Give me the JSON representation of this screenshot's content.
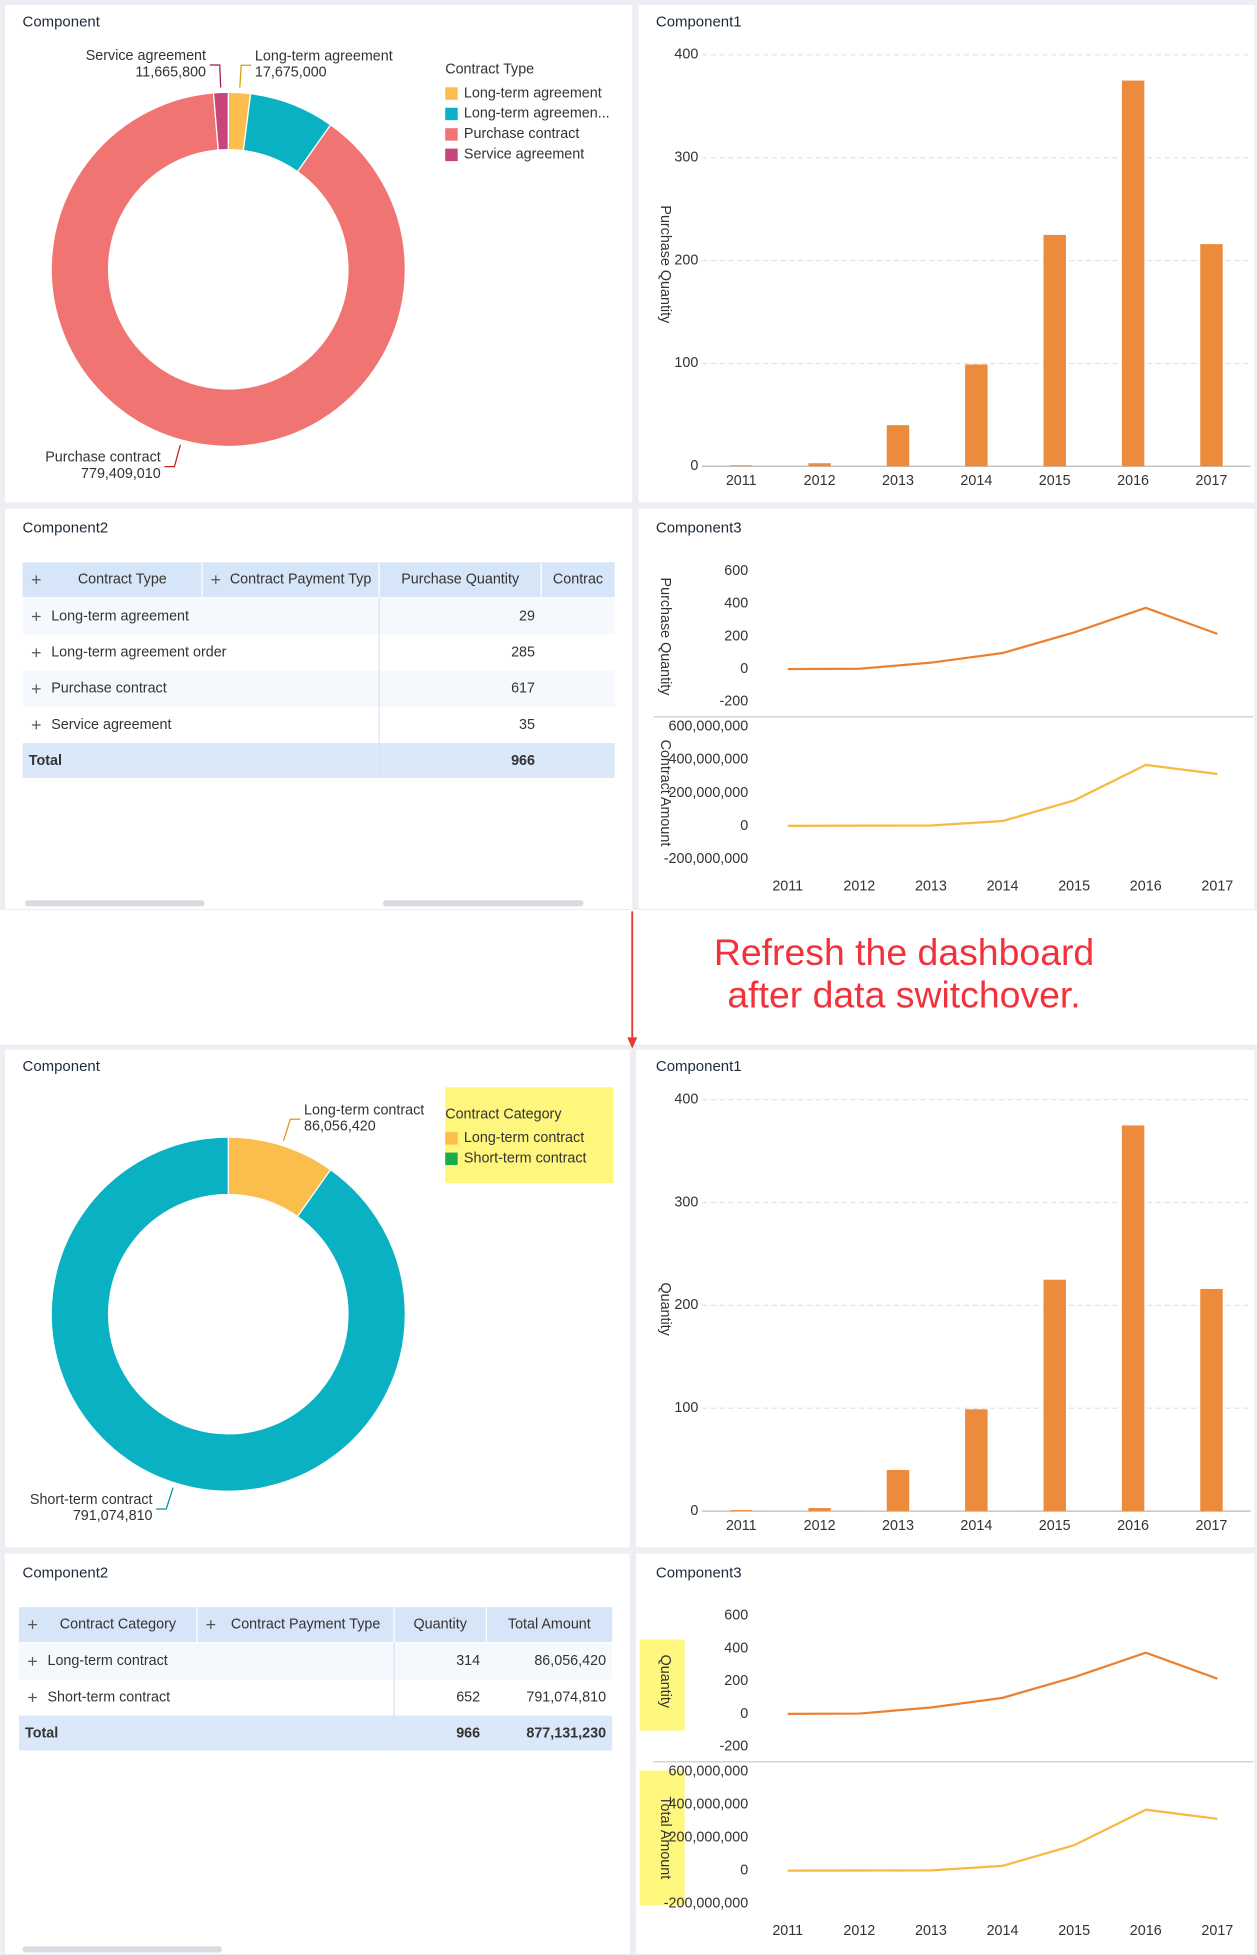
{
  "annotation": [
    "Refresh the dashboard",
    "after data switchover."
  ],
  "dashboards": [
    {
      "donut": {
        "title": "Component",
        "type": "donut",
        "legend_title": "Contract Type",
        "categories": [
          "Long-term agreement",
          "Long-term agreemen...",
          "Purchase contract",
          "Service agreement"
        ],
        "values": [
          17675000,
          68381420,
          779409010,
          11665800
        ],
        "value_labels": [
          "17,675,000",
          null,
          "779,409,010",
          "11,665,800"
        ],
        "colors": [
          "#fbbd4b",
          "#0ab1c3",
          "#f07471",
          "#c8457c"
        ],
        "legend_colors": [
          "#fbbd4b",
          "#0ab1c3",
          "#f07471",
          "#c8457c"
        ],
        "label_colors": [
          "#d99a0c",
          null,
          "#c8201f",
          "#a8124f"
        ]
      },
      "bar": {
        "title": "Component1",
        "type": "bar",
        "y_label": "Purchase Quantity",
        "categories": [
          "2011",
          "2012",
          "2013",
          "2014",
          "2015",
          "2016",
          "2017"
        ],
        "values": [
          1,
          3,
          40,
          99,
          225,
          375,
          216
        ],
        "color": "#ec8b3b",
        "ylim": [
          0,
          400
        ],
        "yticks": [
          0,
          100,
          200,
          300,
          400
        ],
        "grid": true
      },
      "table": {
        "title": "Component2",
        "columns": [
          "Contract Type",
          "Contract Payment Typ",
          "Purchase Quantity",
          "Contrac"
        ],
        "rows": [
          [
            "Long-term agreement",
            null,
            "29",
            null
          ],
          [
            "Long-term agreement order",
            null,
            "285",
            null
          ],
          [
            "Purchase contract",
            null,
            "617",
            null
          ],
          [
            "Service agreement",
            null,
            "35",
            null
          ]
        ],
        "total": [
          "Total",
          null,
          "966",
          null
        ]
      },
      "line": {
        "title": "Component3",
        "type": "line",
        "categories": [
          "2011",
          "2012",
          "2013",
          "2014",
          "2015",
          "2016",
          "2017"
        ],
        "series": [
          {
            "name": "Purchase Quantity",
            "color": "#ec8031",
            "values": [
              1,
              3,
              40,
              99,
              225,
              375,
              216
            ],
            "ylim": [
              -200,
              600
            ],
            "yticks": [
              -200,
              0,
              200,
              400,
              600
            ]
          },
          {
            "name": "Contract Amount",
            "color": "#f9b842",
            "values": [
              1000000,
              2000000,
              3000000,
              30000000,
              155000000,
              370000000,
              315000000
            ],
            "ylim": [
              -200000000,
              600000000
            ],
            "yticks": [
              {
                "value": -200000000,
                "label": "-200,000,000"
              },
              0,
              {
                "value": 200000000,
                "label": "200,000,000"
              },
              {
                "value": 400000000,
                "label": "400,000,000"
              },
              {
                "value": 600000000,
                "label": "600,000,000"
              }
            ]
          }
        ]
      }
    },
    {
      "donut": {
        "title": "Component",
        "type": "donut",
        "legend_title": "Contract Category",
        "categories": [
          "Long-term contract",
          "Short-term contract"
        ],
        "values": [
          86056420,
          791074810
        ],
        "value_labels": [
          "86,056,420",
          "791,074,810"
        ],
        "colors": [
          "#fbbd4b",
          "#0ab1c3"
        ],
        "legend_colors": [
          "#fbbd4b",
          "#19ad4a"
        ],
        "label_colors": [
          "#d99a0c",
          "#0d8c9c"
        ]
      },
      "bar": {
        "title": "Component1",
        "type": "bar",
        "y_label": "Quantity",
        "categories": [
          "2011",
          "2012",
          "2013",
          "2014",
          "2015",
          "2016",
          "2017"
        ],
        "values": [
          1,
          3,
          40,
          99,
          225,
          375,
          216
        ],
        "color": "#ec8b3b",
        "ylim": [
          0,
          400
        ],
        "yticks": [
          0,
          100,
          200,
          300,
          400
        ],
        "grid": true
      },
      "table": {
        "title": "Component2",
        "columns": [
          "Contract Category",
          "Contract Payment Type",
          "Quantity",
          "Total Amount"
        ],
        "rows": [
          [
            "Long-term contract",
            null,
            "314",
            "86,056,420"
          ],
          [
            "Short-term contract",
            null,
            "652",
            "791,074,810"
          ]
        ],
        "total": [
          "Total",
          null,
          "966",
          "877,131,230"
        ]
      },
      "line": {
        "title": "Component3",
        "type": "line",
        "categories": [
          "2011",
          "2012",
          "2013",
          "2014",
          "2015",
          "2016",
          "2017"
        ],
        "series": [
          {
            "name": "Quantity",
            "color": "#ec8031",
            "values": [
              1,
              3,
              40,
              99,
              225,
              375,
              216
            ],
            "ylim": [
              -200,
              600
            ],
            "yticks": [
              -200,
              0,
              200,
              400,
              600
            ]
          },
          {
            "name": "Total Amount",
            "color": "#f9b842",
            "values": [
              1000000,
              2000000,
              3000000,
              30000000,
              155000000,
              370000000,
              315000000
            ],
            "ylim": [
              -200000000,
              600000000
            ],
            "yticks": [
              {
                "value": -200000000,
                "label": "-200,000,000"
              },
              0,
              {
                "value": 200000000,
                "label": "200,000,000"
              },
              {
                "value": 400000000,
                "label": "400,000,000"
              },
              {
                "value": 600000000,
                "label": "600,000,000"
              }
            ]
          }
        ]
      }
    }
  ]
}
